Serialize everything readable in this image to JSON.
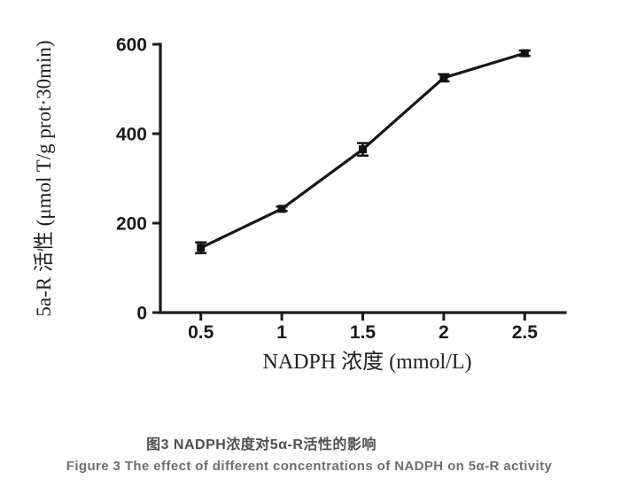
{
  "chart_data": {
    "type": "line",
    "x": [
      0.5,
      1,
      1.5,
      2,
      2.5
    ],
    "series": [
      {
        "name": "5a-R activity",
        "values": [
          145,
          232,
          365,
          525,
          580
        ],
        "errors": [
          12,
          5,
          14,
          8,
          6
        ]
      }
    ],
    "title": "",
    "xlabel": "NADPH 浓度 (mmol/L)",
    "ylabel": "5a-R 活性 (μmol T/g prot·30min)",
    "xlim": [
      0.25,
      2.75
    ],
    "ylim": [
      0,
      600
    ],
    "x_ticks": [
      0.5,
      1,
      1.5,
      2,
      2.5
    ],
    "x_tick_labels": [
      "0.5",
      "1",
      "1.5",
      "2",
      "2.5"
    ],
    "y_ticks": [
      0,
      200,
      400,
      600
    ],
    "y_tick_labels": [
      "0",
      "200",
      "400",
      "600"
    ],
    "grid": false,
    "legend": "none",
    "marker": "filled-square",
    "error_bars": true
  },
  "captions": {
    "chinese": "图3 NADPH浓度对5α-R活性的影响",
    "english": "Figure 3 The effect of different concentrations of NADPH on 5α-R activity"
  },
  "colors": {
    "axis": "#1a1a1a",
    "line": "#161616",
    "marker": "#111111",
    "tick_label": "#1a1a1a",
    "axis_title": "#1f1f1f",
    "caption_chinese": "#4f4f4f",
    "caption_english": "#6e6e6e",
    "background": "#ffffff"
  }
}
